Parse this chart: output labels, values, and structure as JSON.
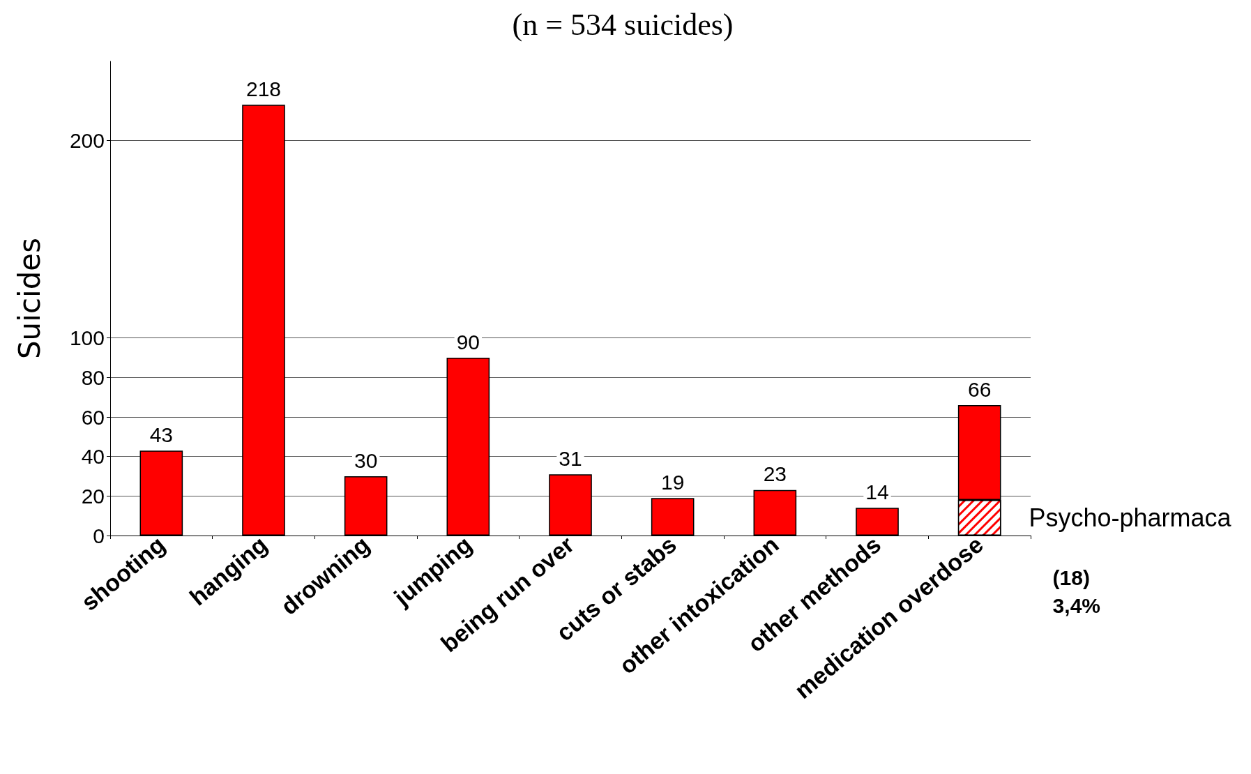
{
  "chart_data": {
    "type": "bar",
    "title": "(n = 534 suicides)",
    "ylabel": "Suicides",
    "categories": [
      "shooting",
      "hanging",
      "drowning",
      "jumping",
      "being run over",
      "cuts or stabs",
      "other intoxication",
      "other methods",
      "medication overdose"
    ],
    "stacked": true,
    "series": [
      {
        "name": "Psycho-pharmaca",
        "color": "#ff0000",
        "values": [
          null,
          null,
          null,
          null,
          null,
          null,
          null,
          null,
          18
        ]
      },
      {
        "color": "#ff0000",
        "values": [
          43,
          218,
          30,
          90,
          31,
          19,
          23,
          14,
          48
        ]
      }
    ],
    "totals": [
      "43",
      "218",
      "30",
      "90",
      "31",
      "19",
      "23",
      "14",
      "66"
    ],
    "ylim": [
      0,
      240
    ],
    "yticks": [
      0,
      20,
      40,
      60,
      80,
      100,
      200
    ],
    "grid": "y",
    "legend": false,
    "annotations": [
      "(18)\n3,4%"
    ]
  }
}
